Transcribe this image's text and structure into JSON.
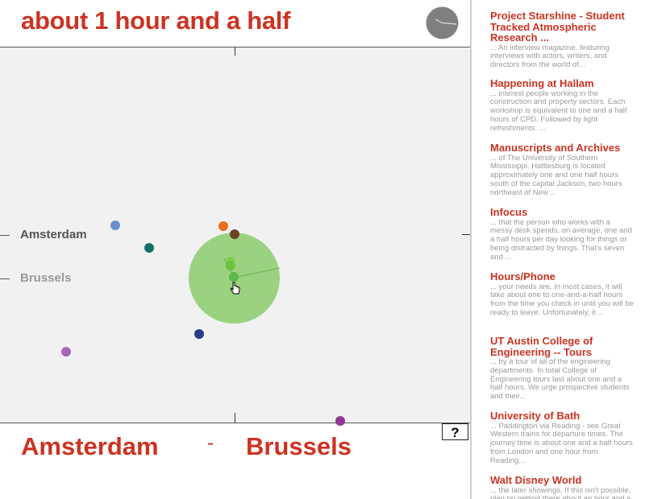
{
  "header": {
    "title": "about 1 hour and a half"
  },
  "chart_labels": {
    "city_a": "Amsterdam",
    "city_b": "Brussels"
  },
  "route": {
    "from": "Amsterdam",
    "separator": "-",
    "to": "Brussels"
  },
  "help": {
    "label": "?"
  },
  "colors": {
    "accent": "#cc3322",
    "focus_circle": "#95d07a",
    "plot_background": "#f1f1f1"
  },
  "results": [
    {
      "title": "Project Starshine - Student Tracked Atmospheric Research ...",
      "snippet": "... An interview magazine, featuring interviews with actors, writers, and directors from the world of..."
    },
    {
      "title": "Happening at Hallam",
      "snippet": "... interest people working in the construction and property sectors. Each workshop is equivalent to one and a half hours of CPD. Followed by light refreshments. ..."
    },
    {
      "title": "Manuscripts and Archives",
      "snippet": "... of The University of Southern Mississippi. Hattiesburg is located approximately one and one half hours south of the capital Jackson, two hours northeast of New ..."
    },
    {
      "title": "Infocus",
      "snippet": "... that the person who works with a messy desk spends, on average, one and a half hours per day looking for things or being distracted by things. That's seven and ..."
    },
    {
      "title": "Hours/Phone",
      "snippet": "... your needs are. In most cases, it will take about one to one-and-a-half hours from the time you check in until you will be ready to leave. Unfortunately, it ..."
    },
    {
      "title": "UT Austin College of Engineering -- Tours",
      "snippet": "... by a tour of all of the engineering departments. In total College of Engineering tours last about one and a half hours. We urge prospective students and their..."
    },
    {
      "title": "University of Bath",
      "snippet": "... Paddington via Reading - see Great Western trains for departure times. The journey time is about one and a half hours from London and one hour from Reading..."
    },
    {
      "title": "Walt Disney World",
      "snippet": "... the later showings. If this isn't possible, plan on getting there about an hour and a half early..."
    }
  ]
}
